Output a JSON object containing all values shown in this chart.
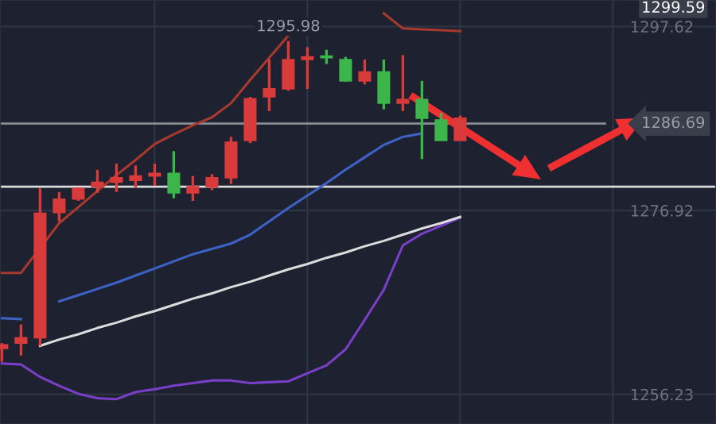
{
  "chart_data": {
    "type": "candlestick",
    "categories": [
      null,
      null,
      null,
      null,
      null,
      null,
      null,
      null,
      null,
      null,
      null,
      null,
      null,
      null,
      null,
      null,
      null,
      null,
      null,
      null,
      null,
      null,
      null,
      null,
      null
    ],
    "ohlc": [
      [
        1261.4,
        1262.0,
        1259.9,
        1261.8
      ],
      [
        1262.0,
        1264.1,
        1260.6,
        1262.6
      ],
      [
        1262.6,
        1279.4,
        1261.7,
        1276.6
      ],
      [
        1276.7,
        1279.0,
        1275.7,
        1278.2
      ],
      [
        1278.2,
        1279.5,
        1278.0,
        1279.4
      ],
      [
        1279.6,
        1281.5,
        1278.9,
        1280.1
      ],
      [
        1280.1,
        1282.2,
        1279.0,
        1280.6
      ],
      [
        1280.3,
        1282.0,
        1279.5,
        1280.8
      ],
      [
        1280.8,
        1282.2,
        1279.7,
        1281.1
      ],
      [
        1281.1,
        1283.6,
        1278.3,
        1278.9
      ],
      [
        1278.9,
        1280.8,
        1278.0,
        1279.6
      ],
      [
        1279.6,
        1281.0,
        1279.2,
        1280.6
      ],
      [
        1280.6,
        1285.2,
        1279.9,
        1284.6
      ],
      [
        1284.8,
        1289.7,
        1284.5,
        1289.5
      ],
      [
        1289.7,
        1293.9,
        1288.1,
        1290.6
      ],
      [
        1290.6,
        1295.98,
        1290.4,
        1293.9
      ],
      [
        1293.9,
        1295.3,
        1290.6,
        1294.2
      ],
      [
        1294.3,
        1295.0,
        1293.4,
        1294.1
      ],
      [
        1293.9,
        1294.2,
        1291.4,
        1291.5
      ],
      [
        1291.5,
        1293.9,
        1291.1,
        1292.5
      ],
      [
        1292.5,
        1293.9,
        1288.3,
        1289.0
      ],
      [
        1289.0,
        1294.4,
        1288.1,
        1289.4
      ],
      [
        1289.4,
        1291.5,
        1282.7,
        1287.3
      ],
      [
        1287.1,
        1287.9,
        1284.8,
        1284.8
      ],
      [
        1284.8,
        1287.6,
        1284.8,
        1287.3
      ]
    ],
    "colors": [
      "#d93a3a",
      "#d93a3a",
      "#d93a3a",
      "#d93a3a",
      "#d93a3a",
      "#d93a3a",
      "#d93a3a",
      "#d93a3a",
      "#d93a3a",
      "#3cb64a",
      "#d93a3a",
      "#d93a3a",
      "#d93a3a",
      "#d93a3a",
      "#d93a3a",
      "#d93a3a",
      "#d93a3a",
      "#3cb64a",
      "#3cb64a",
      "#d93a3a",
      "#3cb64a",
      "#d93a3a",
      "#3cb64a",
      "#3cb64a",
      "#d93a3a"
    ],
    "series": [
      {
        "type": "line",
        "color": "#a8392f",
        "values": [
          1269.9,
          1269.9,
          1272.7,
          1275.5,
          1277.3,
          1279.1,
          1280.9,
          1282.6,
          1284.4,
          1285.5,
          1286.5,
          1287.4,
          1289.0,
          1291.6,
          1294.1,
          1296.6,
          null,
          null,
          null,
          null,
          1299.1,
          1297.4,
          1297.3,
          1297.2,
          1297.1
        ]
      },
      {
        "type": "line",
        "color": "#3d62c6",
        "values": [
          1264.8,
          1264.7,
          null,
          1266.7,
          1267.4,
          1268.1,
          1268.8,
          1269.6,
          1270.4,
          1271.2,
          1272.0,
          1272.6,
          1273.2,
          1274.2,
          1275.7,
          1277.2,
          1278.6,
          1280.0,
          1281.5,
          1282.9,
          1284.3,
          1285.2,
          1285.6,
          null,
          null
        ]
      },
      {
        "type": "line",
        "color": "#7a3fc8",
        "values": [
          1259.7,
          1259.6,
          1258.2,
          1257.2,
          1256.3,
          1255.8,
          1255.7,
          1256.5,
          1256.8,
          1257.2,
          1257.5,
          1257.8,
          1257.8,
          1257.5,
          1257.6,
          1257.7,
          1258.6,
          1259.5,
          1261.3,
          1264.6,
          1268.0,
          1273.0,
          1274.3,
          1275.2,
          1276.1
        ]
      },
      {
        "type": "line",
        "color": "#dcdcdc",
        "values": [
          null,
          null,
          1261.7,
          1262.4,
          1263.0,
          1263.7,
          1264.3,
          1265.0,
          1265.6,
          1266.3,
          1267.0,
          1267.6,
          1268.3,
          1268.9,
          1269.6,
          1270.3,
          1270.9,
          1271.6,
          1272.2,
          1272.9,
          1273.5,
          1274.2,
          1274.9,
          1275.5,
          1276.2
        ]
      }
    ],
    "ref_lines": [
      {
        "axis": "y",
        "value": 1286.69,
        "label": "1286.69",
        "color": "#8a8d94"
      },
      {
        "axis": "y",
        "value": 1279.6,
        "color": "#dcdcdc"
      }
    ],
    "annotations": [
      {
        "text": "1295.98",
        "y": 1295.98
      },
      "1299.59"
    ],
    "ylim": [
      1252.9,
      1300.6
    ],
    "yticks": [
      1256.23,
      1276.92,
      1297.62
    ],
    "tick_labels": "y",
    "grid": true
  }
}
